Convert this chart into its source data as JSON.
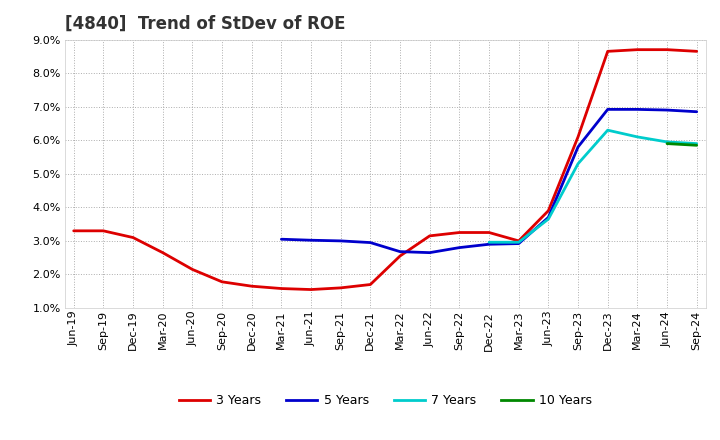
{
  "title": "[4840]  Trend of StDev of ROE",
  "background_color": "#ffffff",
  "plot_bg_color": "#ffffff",
  "grid_color": "#999999",
  "ylim": [
    0.01,
    0.09
  ],
  "yticks": [
    0.01,
    0.02,
    0.03,
    0.04,
    0.05,
    0.06,
    0.07,
    0.08,
    0.09
  ],
  "xtick_labels": [
    "Jun-19",
    "Sep-19",
    "Dec-19",
    "Mar-20",
    "Jun-20",
    "Sep-20",
    "Dec-20",
    "Mar-21",
    "Jun-21",
    "Sep-21",
    "Dec-21",
    "Mar-22",
    "Jun-22",
    "Sep-22",
    "Dec-22",
    "Mar-23",
    "Jun-23",
    "Sep-23",
    "Dec-23",
    "Mar-24",
    "Jun-24",
    "Sep-24"
  ],
  "series_order": [
    "3 Years",
    "5 Years",
    "7 Years",
    "10 Years"
  ],
  "series": {
    "3 Years": {
      "color": "#dd0000",
      "linewidth": 2.0,
      "data": [
        0.033,
        0.033,
        0.031,
        0.0265,
        0.0215,
        0.0178,
        0.0165,
        0.0158,
        0.0155,
        0.016,
        0.017,
        0.0255,
        0.0315,
        0.0325,
        0.0325,
        0.03,
        0.039,
        0.061,
        0.0865,
        0.087,
        0.087,
        0.0865
      ]
    },
    "5 Years": {
      "color": "#0000cc",
      "linewidth": 2.0,
      "data": [
        null,
        null,
        null,
        null,
        null,
        null,
        null,
        0.0305,
        0.0302,
        0.03,
        0.0295,
        0.0268,
        0.0265,
        0.028,
        0.029,
        0.0292,
        0.037,
        0.058,
        0.0692,
        0.0692,
        0.069,
        0.0685
      ]
    },
    "7 Years": {
      "color": "#00cccc",
      "linewidth": 2.0,
      "data": [
        null,
        null,
        null,
        null,
        null,
        null,
        null,
        null,
        null,
        null,
        null,
        null,
        null,
        null,
        0.0296,
        0.0296,
        0.0365,
        0.053,
        0.063,
        0.061,
        0.0595,
        0.059
      ]
    },
    "10 Years": {
      "color": "#008800",
      "linewidth": 2.0,
      "data": [
        null,
        null,
        null,
        null,
        null,
        null,
        null,
        null,
        null,
        null,
        null,
        null,
        null,
        null,
        null,
        null,
        null,
        null,
        null,
        null,
        0.059,
        0.0585
      ]
    }
  },
  "legend_labels": [
    "3 Years",
    "5 Years",
    "7 Years",
    "10 Years"
  ],
  "title_fontsize": 12,
  "tick_fontsize": 8,
  "legend_fontsize": 9
}
